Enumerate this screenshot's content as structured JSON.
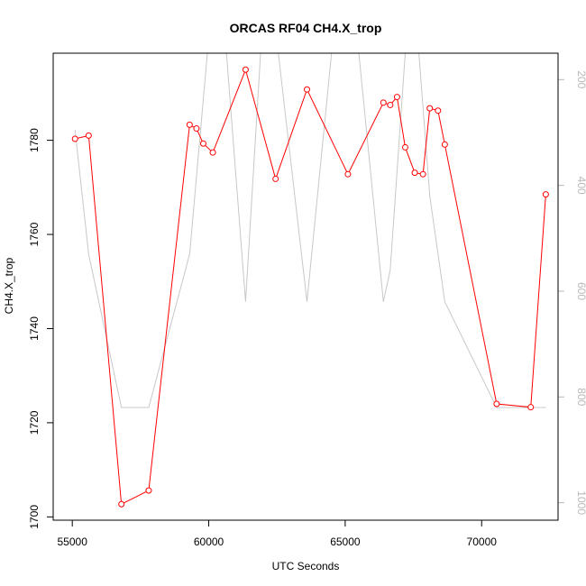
{
  "chart_data": {
    "type": "line",
    "title": "ORCAS RF04 CH4.X_trop",
    "xlabel": "UTC Seconds",
    "ylabel": "CH4.X_trop",
    "xlim": [
      54300,
      72800
    ],
    "ylim": [
      1699.3,
      1798.5
    ],
    "y2lim": [
      1033,
      150
    ],
    "y2_reversed": true,
    "x_ticks": [
      55000,
      60000,
      65000,
      70000
    ],
    "y_ticks": [
      1700,
      1720,
      1740,
      1760,
      1780
    ],
    "y2_ticks": [
      200,
      400,
      600,
      800,
      1000
    ],
    "series": [
      {
        "color": "#ff0000",
        "axis": "left",
        "style": "line+circles",
        "x": [
          55100,
          55600,
          56800,
          57800,
          59300,
          59550,
          59800,
          60150,
          61350,
          62450,
          63600,
          65100,
          66400,
          66650,
          66900,
          67200,
          67550,
          67850,
          68100,
          68400,
          68650,
          70550,
          71800,
          72350
        ],
        "y": [
          1780.3,
          1781.0,
          1702.7,
          1705.6,
          1783.3,
          1782.5,
          1779.3,
          1777.4,
          1795.0,
          1771.8,
          1790.8,
          1772.8,
          1788.0,
          1787.5,
          1789.2,
          1778.5,
          1773.1,
          1772.8,
          1786.8,
          1786.3,
          1779.1,
          1724.0,
          1723.3,
          1768.5
        ]
      },
      {
        "color": "#c8c8c8",
        "axis": "right",
        "style": "line",
        "x": [
          55100,
          55600,
          56800,
          57800,
          59300,
          59950,
          60300,
          60650,
          61350,
          61900,
          62550,
          63600,
          64500,
          65100,
          65500,
          66400,
          66650,
          67200,
          67700,
          68100,
          68650,
          70550,
          71800,
          72350
        ],
        "y": [
          295,
          530,
          820,
          820,
          530,
          150,
          150,
          150,
          620,
          150,
          150,
          620,
          150,
          150,
          150,
          620,
          560,
          150,
          150,
          420,
          620,
          820,
          820,
          820
        ]
      }
    ]
  }
}
